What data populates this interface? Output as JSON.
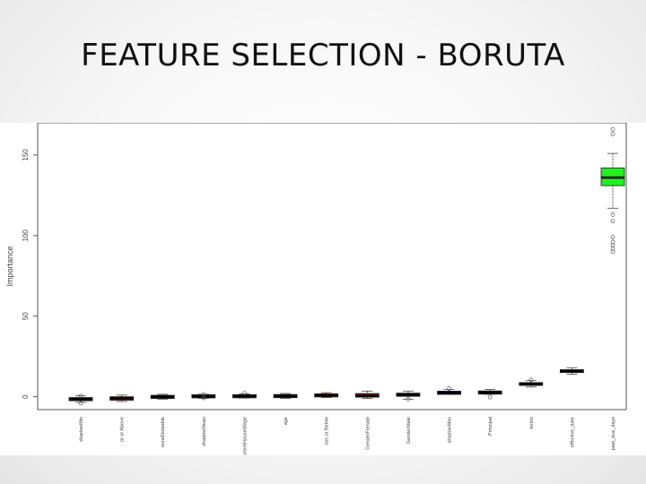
{
  "slide": {
    "title": "FEATURE SELECTION - BORUTA"
  },
  "chart_data": {
    "type": "box",
    "title": "",
    "xlabel": "",
    "ylabel": "Importance",
    "ylim": [
      -8,
      170
    ],
    "yticks": [
      0,
      50,
      100,
      150
    ],
    "grid": false,
    "legend": "none",
    "colors": {
      "rejected": "#8b1a1a",
      "tentative": "#00008b",
      "confirmed": "#22ee22",
      "shadow": "#1a1a1a"
    },
    "categories": [
      {
        "label": "shadowMin",
        "status": "shadow",
        "min": -3.5,
        "q1": -2.0,
        "median": -1.5,
        "q3": -1.0,
        "max": 0.5,
        "outliers": [
          -4,
          0.5
        ]
      },
      {
        "label": "or or Above",
        "status": "rejected",
        "min": -3.0,
        "q1": -2.2,
        "median": -1.0,
        "q3": 0.0,
        "max": 1.0,
        "outliers": []
      },
      {
        "label": "oundDetaable",
        "status": "shadow",
        "min": -1.5,
        "q1": -0.8,
        "median": 0.0,
        "q3": 0.6,
        "max": 1.5,
        "outliers": []
      },
      {
        "label": "shadowMean",
        "status": "shadow",
        "min": -1.0,
        "q1": -0.3,
        "median": 0.2,
        "q3": 0.8,
        "max": 1.5,
        "outliers": [
          1.5,
          -0.8
        ]
      },
      {
        "label": "CurrentHouseWage",
        "status": "shadow",
        "min": -0.8,
        "q1": -0.2,
        "median": 0.3,
        "q3": 0.8,
        "max": 1.8,
        "outliers": [
          2.2
        ]
      },
      {
        "label": "age",
        "status": "shadow",
        "min": -1.0,
        "q1": -0.2,
        "median": 0.4,
        "q3": 1.0,
        "max": 2.0,
        "outliers": []
      },
      {
        "label": "oss or Below",
        "status": "rejected",
        "min": -0.5,
        "q1": 0.2,
        "median": 0.8,
        "q3": 1.5,
        "max": 2.5,
        "outliers": []
      },
      {
        "label": "GenderFemale",
        "status": "rejected",
        "min": -1.0,
        "q1": -0.3,
        "median": 0.6,
        "q3": 2.0,
        "max": 3.5,
        "outliers": []
      },
      {
        "label": "GenderMale",
        "status": "shadow",
        "min": -1.5,
        "q1": 0.5,
        "median": 1.0,
        "q3": 2.0,
        "max": 3.5,
        "outliers": [
          -1.5
        ]
      },
      {
        "label": "shadowMax",
        "status": "tentative",
        "min": 1.5,
        "q1": 1.9,
        "median": 2.5,
        "q3": 3.0,
        "max": 4.5,
        "outliers": [
          5.0
        ]
      },
      {
        "label": "Principal",
        "status": "shadow",
        "min": 1.5,
        "q1": 2.0,
        "median": 2.6,
        "q3": 3.2,
        "max": 4.5,
        "outliers": [
          -0.3
        ]
      },
      {
        "label": "terms",
        "status": "shadow",
        "min": 6.0,
        "q1": 7.0,
        "median": 7.8,
        "q3": 8.8,
        "max": 10.0,
        "outliers": [
          10.5
        ]
      },
      {
        "label": "effective_date",
        "status": "shadow",
        "min": 14.0,
        "q1": 15.0,
        "median": 15.8,
        "q3": 16.8,
        "max": 18.0,
        "outliers": []
      },
      {
        "label": "past_due_days",
        "status": "confirmed",
        "min": 117,
        "q1": 131,
        "median": 136,
        "q3": 142,
        "max": 151,
        "outliers": [
          166,
          163,
          113,
          109,
          99,
          96,
          94,
          92,
          90
        ]
      }
    ]
  }
}
